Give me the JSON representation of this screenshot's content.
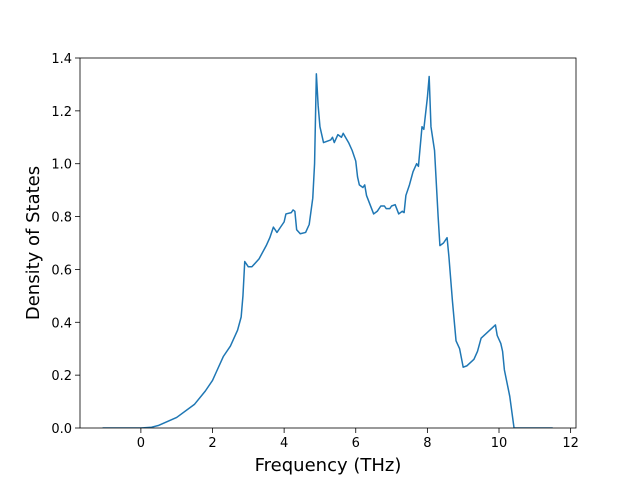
{
  "chart_data": {
    "type": "line",
    "xlabel": "Frequency (THz)",
    "ylabel": "Density of States",
    "x": [
      -1.07,
      0,
      0.3,
      0.5,
      1.0,
      1.5,
      1.8,
      2.0,
      2.1,
      2.3,
      2.5,
      2.7,
      2.8,
      2.85,
      2.9,
      3.0,
      3.1,
      3.3,
      3.5,
      3.6,
      3.7,
      3.8,
      3.9,
      4.0,
      4.05,
      4.2,
      4.25,
      4.3,
      4.35,
      4.45,
      4.6,
      4.7,
      4.8,
      4.85,
      4.9,
      4.95,
      5.0,
      5.1,
      5.3,
      5.35,
      5.4,
      5.5,
      5.6,
      5.65,
      5.8,
      5.9,
      6.0,
      6.05,
      6.1,
      6.2,
      6.25,
      6.3,
      6.5,
      6.6,
      6.7,
      6.8,
      6.85,
      6.95,
      7.0,
      7.1,
      7.2,
      7.3,
      7.35,
      7.4,
      7.5,
      7.6,
      7.7,
      7.75,
      7.85,
      7.9,
      8.0,
      8.05,
      8.1,
      8.2,
      8.3,
      8.35,
      8.45,
      8.55,
      8.6,
      8.7,
      8.8,
      8.9,
      9.0,
      9.1,
      9.3,
      9.4,
      9.5,
      9.9,
      9.95,
      10.05,
      10.1,
      10.15,
      10.3,
      10.42,
      11.5
    ],
    "values": [
      0,
      0,
      0.003,
      0.01,
      0.04,
      0.09,
      0.14,
      0.18,
      0.21,
      0.27,
      0.31,
      0.37,
      0.42,
      0.5,
      0.63,
      0.61,
      0.61,
      0.64,
      0.69,
      0.72,
      0.76,
      0.74,
      0.76,
      0.78,
      0.81,
      0.815,
      0.825,
      0.82,
      0.75,
      0.735,
      0.74,
      0.77,
      0.87,
      1.0,
      1.34,
      1.22,
      1.14,
      1.08,
      1.09,
      1.1,
      1.08,
      1.11,
      1.1,
      1.115,
      1.08,
      1.05,
      1.01,
      0.95,
      0.92,
      0.91,
      0.92,
      0.88,
      0.81,
      0.82,
      0.84,
      0.84,
      0.83,
      0.83,
      0.84,
      0.845,
      0.81,
      0.82,
      0.815,
      0.88,
      0.92,
      0.97,
      1.0,
      0.99,
      1.14,
      1.13,
      1.25,
      1.33,
      1.14,
      1.05,
      0.8,
      0.69,
      0.7,
      0.72,
      0.65,
      0.48,
      0.33,
      0.3,
      0.23,
      0.235,
      0.26,
      0.29,
      0.34,
      0.39,
      0.35,
      0.32,
      0.29,
      0.22,
      0.12,
      0,
      0
    ],
    "color": "#1f77b4",
    "xlim": [
      -1.7,
      12.15
    ],
    "xticks": [
      0,
      2,
      4,
      6,
      8,
      10,
      12
    ],
    "ylim": [
      0,
      1.4
    ],
    "yticks": [
      {
        "value": 0,
        "label": "0.0"
      },
      0.2,
      0.4,
      0.6,
      0.8,
      {
        "value": 1,
        "label": "1.0"
      },
      1.2,
      1.4
    ]
  }
}
